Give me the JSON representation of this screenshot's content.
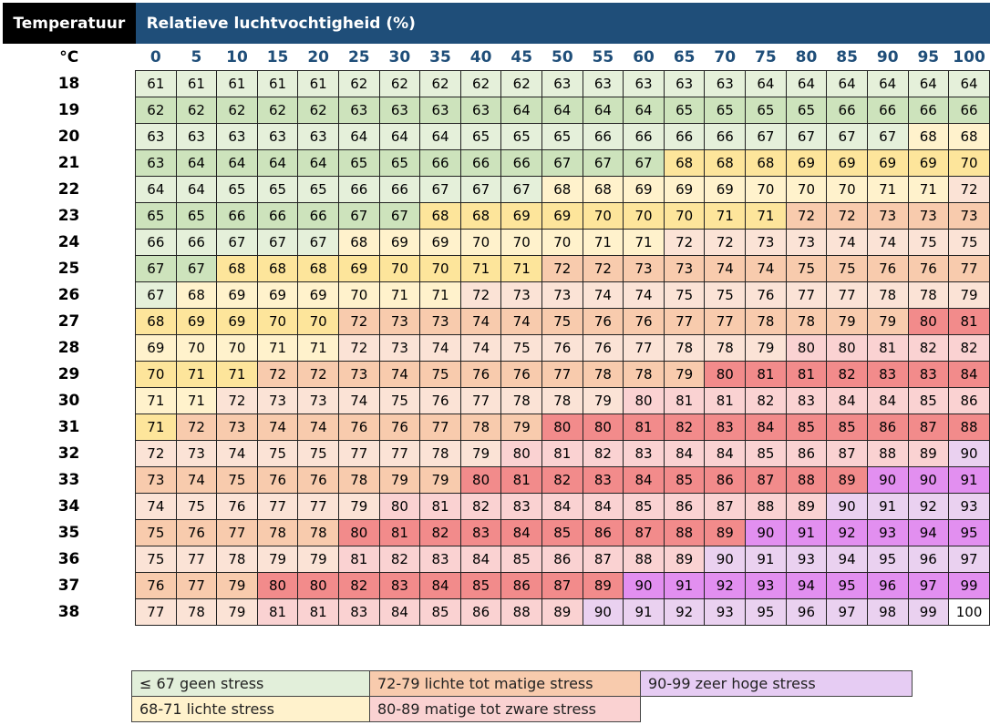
{
  "header": {
    "temp_label": "Temperatuur",
    "rh_label": "Relatieve luchtvochtigheid (%)",
    "unit": "°C"
  },
  "chart_data": {
    "type": "heatmap",
    "xlabel": "Relatieve luchtvochtigheid (%)",
    "ylabel": "Temperatuur",
    "x": [
      0,
      5,
      10,
      15,
      20,
      25,
      30,
      35,
      40,
      45,
      50,
      55,
      60,
      65,
      70,
      75,
      80,
      85,
      90,
      95,
      100
    ],
    "y": [
      18,
      19,
      20,
      21,
      22,
      23,
      24,
      25,
      26,
      27,
      28,
      29,
      30,
      31,
      32,
      33,
      34,
      35,
      36,
      37,
      38
    ],
    "values": [
      [
        61,
        61,
        61,
        61,
        61,
        62,
        62,
        62,
        62,
        62,
        63,
        63,
        63,
        63,
        63,
        64,
        64,
        64,
        64,
        64,
        64
      ],
      [
        62,
        62,
        62,
        62,
        62,
        63,
        63,
        63,
        63,
        64,
        64,
        64,
        64,
        65,
        65,
        65,
        65,
        66,
        66,
        66,
        66
      ],
      [
        63,
        63,
        63,
        63,
        63,
        64,
        64,
        64,
        65,
        65,
        65,
        66,
        66,
        66,
        66,
        67,
        67,
        67,
        67,
        68,
        68
      ],
      [
        63,
        64,
        64,
        64,
        64,
        65,
        65,
        66,
        66,
        66,
        67,
        67,
        67,
        68,
        68,
        68,
        69,
        69,
        69,
        69,
        70
      ],
      [
        64,
        64,
        65,
        65,
        65,
        66,
        66,
        67,
        67,
        67,
        68,
        68,
        69,
        69,
        69,
        70,
        70,
        70,
        71,
        71,
        72
      ],
      [
        65,
        65,
        66,
        66,
        66,
        67,
        67,
        68,
        68,
        69,
        69,
        70,
        70,
        70,
        71,
        71,
        72,
        72,
        73,
        73,
        73
      ],
      [
        66,
        66,
        67,
        67,
        67,
        68,
        69,
        69,
        70,
        70,
        70,
        71,
        71,
        72,
        72,
        73,
        73,
        74,
        74,
        75,
        75
      ],
      [
        67,
        67,
        68,
        68,
        68,
        69,
        70,
        70,
        71,
        71,
        72,
        72,
        73,
        73,
        74,
        74,
        75,
        75,
        76,
        76,
        77
      ],
      [
        67,
        68,
        69,
        69,
        69,
        70,
        71,
        71,
        72,
        73,
        73,
        74,
        74,
        75,
        75,
        76,
        77,
        77,
        78,
        78,
        79
      ],
      [
        68,
        69,
        69,
        70,
        70,
        72,
        73,
        73,
        74,
        74,
        75,
        76,
        76,
        77,
        77,
        78,
        78,
        79,
        79,
        80,
        81
      ],
      [
        69,
        70,
        70,
        71,
        71,
        72,
        73,
        74,
        74,
        75,
        76,
        76,
        77,
        78,
        78,
        79,
        80,
        80,
        81,
        82,
        82
      ],
      [
        70,
        71,
        71,
        72,
        72,
        73,
        74,
        75,
        76,
        76,
        77,
        78,
        78,
        79,
        80,
        81,
        81,
        82,
        83,
        83,
        84
      ],
      [
        71,
        71,
        72,
        73,
        73,
        74,
        75,
        76,
        77,
        78,
        78,
        79,
        80,
        81,
        81,
        82,
        83,
        84,
        84,
        85,
        86
      ],
      [
        71,
        72,
        73,
        74,
        74,
        76,
        76,
        77,
        78,
        79,
        80,
        80,
        81,
        82,
        83,
        84,
        85,
        85,
        86,
        87,
        88
      ],
      [
        72,
        73,
        74,
        75,
        75,
        77,
        77,
        78,
        79,
        80,
        81,
        82,
        83,
        84,
        84,
        85,
        86,
        87,
        88,
        89,
        90
      ],
      [
        73,
        74,
        75,
        76,
        76,
        78,
        79,
        79,
        80,
        81,
        82,
        83,
        84,
        85,
        86,
        87,
        88,
        89,
        90,
        90,
        91
      ],
      [
        74,
        75,
        76,
        77,
        77,
        79,
        80,
        81,
        82,
        83,
        84,
        84,
        85,
        86,
        87,
        88,
        89,
        90,
        91,
        92,
        93
      ],
      [
        75,
        76,
        77,
        78,
        78,
        80,
        81,
        82,
        83,
        84,
        85,
        86,
        87,
        88,
        89,
        90,
        91,
        92,
        93,
        94,
        95
      ],
      [
        75,
        77,
        78,
        79,
        79,
        81,
        82,
        83,
        84,
        85,
        86,
        87,
        88,
        89,
        90,
        91,
        93,
        94,
        95,
        96,
        97
      ],
      [
        76,
        77,
        79,
        80,
        80,
        82,
        83,
        84,
        85,
        86,
        87,
        89,
        90,
        91,
        92,
        93,
        94,
        95,
        96,
        97,
        99
      ],
      [
        77,
        78,
        79,
        81,
        81,
        83,
        84,
        85,
        86,
        88,
        89,
        90,
        91,
        92,
        93,
        95,
        96,
        97,
        98,
        99,
        100
      ]
    ],
    "color_scale": [
      {
        "max": 67,
        "label": "≤ 67 geen stress",
        "light": "#e5f0da",
        "dark": "#cde3bc"
      },
      {
        "max": 71,
        "label": "68-71 lichte stress",
        "light": "#fff2cc",
        "dark": "#fde59b"
      },
      {
        "max": 79,
        "label": "72-79 lichte tot matige stress",
        "light": "#fbe3d6",
        "dark": "#f8cbad"
      },
      {
        "max": 89,
        "label": "80-89 matige tot zware stress",
        "light": "#fad2d2",
        "dark": "#f28b8b"
      },
      {
        "max": 99,
        "label": "90-99 zeer hoge stress",
        "light": "#ead1f0",
        "dark": "#e28ff0"
      },
      {
        "max": 100,
        "label": "",
        "light": "#ffffff",
        "dark": "#ffffff"
      }
    ]
  },
  "legend": {
    "items": [
      {
        "label": "≤ 67 geen stress",
        "color": "#e2efda"
      },
      {
        "label": "72-79 lichte tot matige stress",
        "color": "#f8cbad"
      },
      {
        "label": "90-99 zeer hoge stress",
        "color": "#e6ccf3"
      },
      {
        "label": "68-71 lichte stress",
        "color": "#fff2cc"
      },
      {
        "label": "80-89 matige tot zware stress",
        "color": "#fad2d2"
      }
    ]
  }
}
